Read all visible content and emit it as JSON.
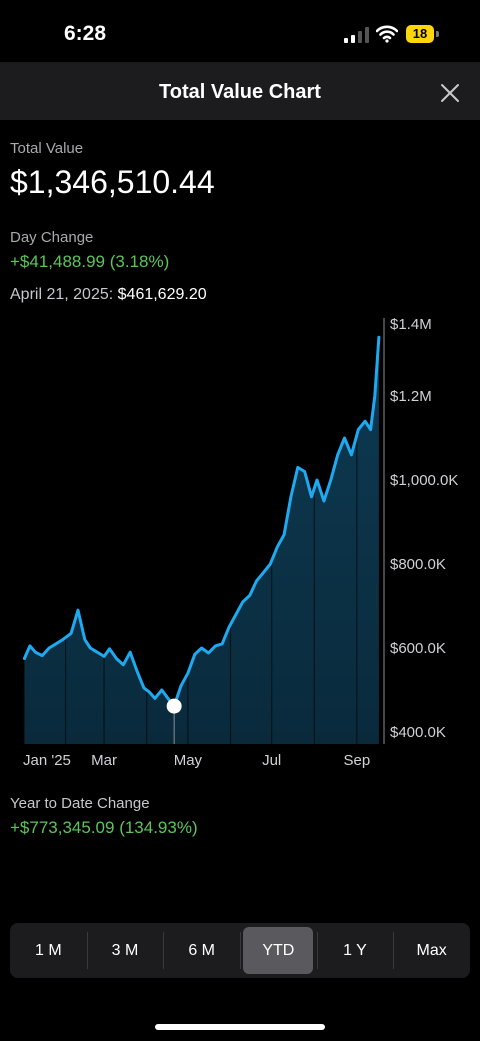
{
  "status": {
    "time": "6:28",
    "battery": "18"
  },
  "header": {
    "title": "Total Value Chart"
  },
  "summary": {
    "total_value_label": "Total Value",
    "total_value": "$1,346,510.44",
    "day_change_label": "Day Change",
    "day_change": "+$41,488.99 (3.18%)",
    "selected_date": "April 21, 2025:",
    "selected_value": "$461,629.20"
  },
  "ytd": {
    "label": "Year to Date Change",
    "value": "+$773,345.09 (134.93%)"
  },
  "ranges": [
    {
      "label": "1 M",
      "selected": false
    },
    {
      "label": "3 M",
      "selected": false
    },
    {
      "label": "6 M",
      "selected": false
    },
    {
      "label": "YTD",
      "selected": true
    },
    {
      "label": "1 Y",
      "selected": false
    },
    {
      "label": "Max",
      "selected": false
    }
  ],
  "colors": {
    "line": "#1eaaf1",
    "positive": "#5cc55a",
    "selected_range": "#5a5a5e"
  },
  "chart_data": {
    "type": "area",
    "x": [
      "2025-01-02",
      "2025-01-06",
      "2025-01-10",
      "2025-01-15",
      "2025-01-20",
      "2025-01-25",
      "2025-01-30",
      "2025-02-05",
      "2025-02-10",
      "2025-02-15",
      "2025-02-19",
      "2025-02-24",
      "2025-03-01",
      "2025-03-05",
      "2025-03-10",
      "2025-03-15",
      "2025-03-20",
      "2025-03-25",
      "2025-03-30",
      "2025-04-03",
      "2025-04-07",
      "2025-04-12",
      "2025-04-17",
      "2025-04-21",
      "2025-04-26",
      "2025-05-01",
      "2025-05-06",
      "2025-05-11",
      "2025-05-16",
      "2025-05-21",
      "2025-05-26",
      "2025-05-31",
      "2025-06-05",
      "2025-06-10",
      "2025-06-15",
      "2025-06-20",
      "2025-06-25",
      "2025-06-30",
      "2025-07-05",
      "2025-07-10",
      "2025-07-15",
      "2025-07-20",
      "2025-07-25",
      "2025-07-30",
      "2025-08-03",
      "2025-08-08",
      "2025-08-13",
      "2025-08-18",
      "2025-08-23",
      "2025-08-28",
      "2025-09-02",
      "2025-09-07",
      "2025-09-11",
      "2025-09-14",
      "2025-09-17"
    ],
    "values": [
      575,
      605,
      590,
      582,
      600,
      610,
      620,
      635,
      690,
      620,
      600,
      590,
      580,
      598,
      575,
      560,
      590,
      545,
      505,
      495,
      480,
      500,
      478,
      462,
      510,
      540,
      585,
      600,
      588,
      605,
      610,
      650,
      680,
      710,
      725,
      760,
      780,
      800,
      840,
      870,
      960,
      1030,
      1020,
      960,
      1000,
      950,
      1000,
      1060,
      1100,
      1060,
      1120,
      1140,
      1120,
      1200,
      1340
    ],
    "ylim": [
      400,
      1400
    ],
    "y_ticks": [
      "$1.4M",
      "$1.2M",
      "$1,000.0K",
      "$800.0K",
      "$600.0K",
      "$400.0K"
    ],
    "x_ticks": [
      "Jan '25",
      "Mar",
      "May",
      "Jul",
      "Sep"
    ],
    "selected_point": {
      "x": "2025-04-21",
      "y": 461.6
    }
  }
}
